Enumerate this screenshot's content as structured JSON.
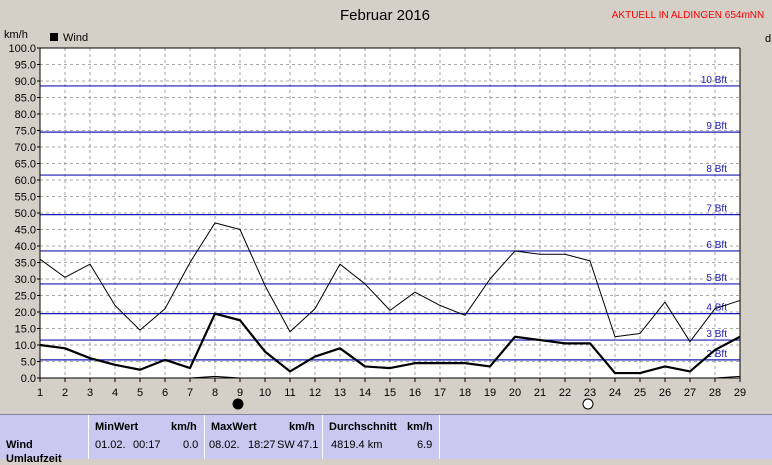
{
  "chart_data": {
    "type": "line",
    "title": "Februar 2016",
    "ylabel": "km/h",
    "corner_note": "AKTUELL IN ALDINGEN 654mNN",
    "edge_text": "d",
    "legend": [
      {
        "label": "Wind",
        "color": "#000000"
      }
    ],
    "ylim": [
      0,
      100
    ],
    "y_ticks": [
      "0.0",
      "5.0",
      "10.0",
      "15.0",
      "20.0",
      "25.0",
      "30.0",
      "35.0",
      "40.0",
      "45.0",
      "50.0",
      "55.0",
      "60.0",
      "65.0",
      "70.0",
      "75.0",
      "80.0",
      "85.0",
      "90.0",
      "95.0",
      "100.0"
    ],
    "x": [
      1,
      2,
      3,
      4,
      5,
      6,
      7,
      8,
      9,
      10,
      11,
      12,
      13,
      14,
      15,
      16,
      17,
      18,
      19,
      20,
      21,
      22,
      23,
      24,
      25,
      26,
      27,
      28,
      29
    ],
    "beaufort": [
      {
        "label": "2 Bft",
        "value": 5.5
      },
      {
        "label": "3 Bft",
        "value": 11.5
      },
      {
        "label": "4 Bft",
        "value": 19.5
      },
      {
        "label": "5 Bft",
        "value": 28.5
      },
      {
        "label": "6 Bft",
        "value": 38.5
      },
      {
        "label": "7 Bft",
        "value": 49.5
      },
      {
        "label": "8 Bft",
        "value": 61.5
      },
      {
        "label": "9 Bft",
        "value": 74.5
      },
      {
        "label": "10 Bft",
        "value": 88.5
      }
    ],
    "series": [
      {
        "name": "Wind",
        "role": "max",
        "values": [
          36,
          30.5,
          34.5,
          22,
          14.5,
          21,
          35,
          47,
          45,
          28,
          14,
          21,
          34.5,
          28.5,
          20.5,
          26,
          22,
          19,
          30,
          38.5,
          37.5,
          37.5,
          35.5,
          12.5,
          13.5,
          23,
          11,
          21,
          23.5
        ]
      },
      {
        "name": "Wind",
        "role": "mean",
        "values": [
          10,
          9,
          6,
          4,
          2.5,
          5.5,
          3,
          19.5,
          17.5,
          8,
          2,
          6.5,
          9,
          3.5,
          3,
          4.5,
          4.5,
          4.5,
          3.5,
          12.5,
          11.5,
          10.5,
          10.5,
          1.5,
          1.5,
          3.5,
          2,
          8.5,
          12.5
        ]
      },
      {
        "name": "Wind",
        "role": "min",
        "values": [
          0,
          0,
          0,
          0,
          0,
          0,
          0,
          0.5,
          0,
          0,
          0,
          0,
          0,
          0,
          0,
          0,
          0,
          0,
          0,
          0,
          0,
          0,
          0,
          0,
          0,
          0,
          0,
          0,
          0.5
        ]
      }
    ],
    "moon_markers": [
      {
        "x": 9,
        "phase": "new"
      },
      {
        "x": 23,
        "phase": "full"
      }
    ]
  },
  "stats": {
    "row_labels": [
      "Wind",
      "Umlaufzeit"
    ],
    "min_header": "MinWert",
    "min_unit": "km/h",
    "min_date": "01.02.",
    "min_time": "00:17",
    "min_value": "0.0",
    "max_header": "MaxWert",
    "max_unit": "km/h",
    "max_date": "08.02.",
    "max_time": "18:27",
    "max_dir": "SW",
    "max_value": "47.1",
    "avg_header": "Durchschnitt",
    "avg_unit": "km/h",
    "avg_distance": "4819.4 km",
    "avg_value": "6.9"
  }
}
